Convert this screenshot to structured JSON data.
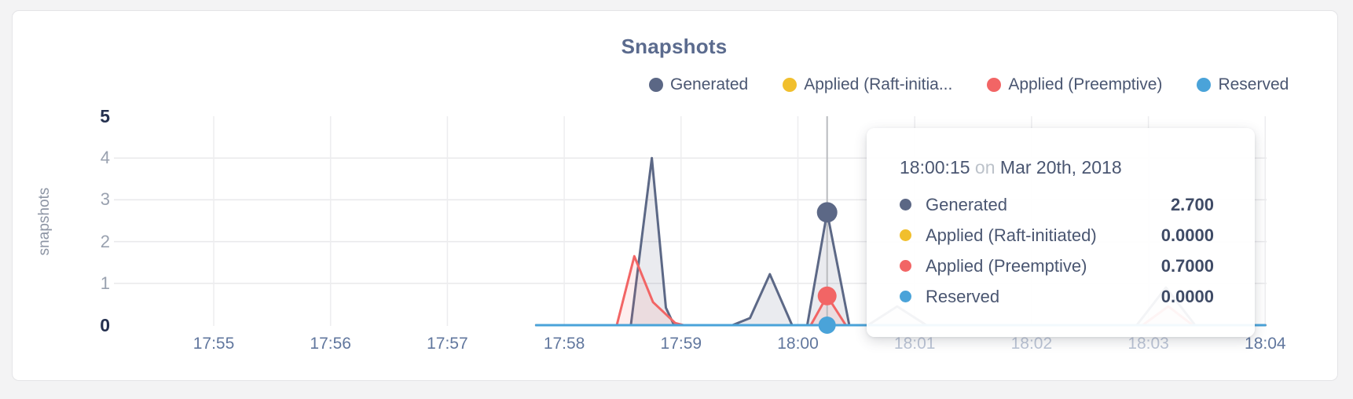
{
  "card": {
    "title": "Snapshots"
  },
  "legend": [
    {
      "label": "Generated",
      "color": "#5b6785"
    },
    {
      "label": "Applied (Raft-initia...",
      "color": "#f1bf2d"
    },
    {
      "label": "Applied (Preemptive)",
      "color": "#f26565"
    },
    {
      "label": "Reserved",
      "color": "#4aa3d9"
    }
  ],
  "y_axis": {
    "label": "snapshots",
    "ticks": [
      {
        "label": "5",
        "value": 5,
        "strong": true
      },
      {
        "label": "4",
        "value": 4,
        "strong": false
      },
      {
        "label": "3",
        "value": 3,
        "strong": false
      },
      {
        "label": "2",
        "value": 2,
        "strong": false
      },
      {
        "label": "1",
        "value": 1,
        "strong": false
      },
      {
        "label": "0",
        "value": 0,
        "strong": true
      }
    ]
  },
  "x_axis": {
    "ticks": [
      {
        "label": "17:55",
        "dim": false
      },
      {
        "label": "17:56",
        "dim": false
      },
      {
        "label": "17:57",
        "dim": false
      },
      {
        "label": "17:58",
        "dim": false
      },
      {
        "label": "17:59",
        "dim": false
      },
      {
        "label": "18:00",
        "dim": false
      },
      {
        "label": "18:01",
        "dim": true
      },
      {
        "label": "18:02",
        "dim": true
      },
      {
        "label": "18:03",
        "dim": true
      },
      {
        "label": "18:04",
        "dim": false
      }
    ]
  },
  "tooltip": {
    "time": "18:00:15",
    "on_word": "on",
    "date": "Mar 20th, 2018",
    "rows": [
      {
        "name": "Generated",
        "value": "2.700",
        "color": "#5b6785"
      },
      {
        "name": "Applied (Raft-initiated)",
        "value": "0.0000",
        "color": "#f1bf2d"
      },
      {
        "name": "Applied (Preemptive)",
        "value": "0.7000",
        "color": "#f26565"
      },
      {
        "name": "Reserved",
        "value": "0.0000",
        "color": "#4aa3d9"
      }
    ]
  },
  "chart_data": {
    "type": "area",
    "title": "Snapshots",
    "xlabel": "",
    "ylabel": "snapshots",
    "ylim": [
      0,
      5
    ],
    "grid": true,
    "legend_position": "top-right",
    "x_unit": "minutes after 17:55",
    "x_tick_labels": [
      "17:55",
      "17:56",
      "17:57",
      "17:58",
      "17:59",
      "18:00",
      "18:01",
      "18:02",
      "18:03",
      "18:04"
    ],
    "gridline_values": [
      1,
      2,
      3,
      4
    ],
    "series": [
      {
        "name": "Generated",
        "color": "#5c6886",
        "fill": "rgba(92,104,134,0.13)",
        "points": [
          [
            2.76,
            0
          ],
          [
            3.57,
            0
          ],
          [
            3.75,
            4.0
          ],
          [
            3.87,
            0.42
          ],
          [
            3.94,
            0
          ],
          [
            4.44,
            0
          ],
          [
            4.59,
            0.17
          ],
          [
            4.76,
            1.22
          ],
          [
            4.95,
            0
          ],
          [
            5.08,
            0
          ],
          [
            5.25,
            2.7
          ],
          [
            5.44,
            0
          ],
          [
            5.6,
            0
          ],
          [
            5.85,
            0.45
          ],
          [
            6.1,
            0
          ],
          [
            7.9,
            0
          ],
          [
            8.15,
            0.9
          ],
          [
            8.4,
            0
          ],
          [
            9.0,
            0
          ]
        ]
      },
      {
        "name": "Applied (Raft-initiated)",
        "color": "#f1bf2d",
        "fill": null,
        "points": [
          [
            2.76,
            0
          ],
          [
            9.0,
            0
          ]
        ]
      },
      {
        "name": "Applied (Preemptive)",
        "color": "#f26565",
        "fill": "rgba(242,101,101,0.11)",
        "points": [
          [
            2.76,
            0
          ],
          [
            3.45,
            0
          ],
          [
            3.6,
            1.65
          ],
          [
            3.76,
            0.55
          ],
          [
            3.95,
            0.05
          ],
          [
            4.02,
            0
          ],
          [
            5.11,
            0
          ],
          [
            5.25,
            0.7
          ],
          [
            5.41,
            0
          ],
          [
            7.95,
            0
          ],
          [
            8.17,
            0.45
          ],
          [
            8.38,
            0
          ],
          [
            9.0,
            0
          ]
        ]
      },
      {
        "name": "Reserved",
        "color": "#4aa3d9",
        "fill": null,
        "points": [
          [
            2.76,
            0
          ],
          [
            9.0,
            0
          ]
        ]
      }
    ],
    "hover": {
      "x": 5.25,
      "time": "18:00:15",
      "date": "Mar 20th, 2018",
      "line_color": "#b9bbbf",
      "points": [
        {
          "series": "Generated",
          "value": 2.7,
          "color": "#5c6886",
          "r": 13
        },
        {
          "series": "Applied (Preemptive)",
          "value": 0.7,
          "color": "#f26565",
          "r": 12
        },
        {
          "series": "Reserved",
          "value": 0.0,
          "color": "#4aa3d9",
          "r": 11
        }
      ]
    },
    "colors": {
      "h_grid": "#e9e9eb",
      "v_grid": "#ededef",
      "title": "#5b6b8e",
      "axis_text": "#61779e",
      "axis_text_strong": "#24304f"
    }
  }
}
